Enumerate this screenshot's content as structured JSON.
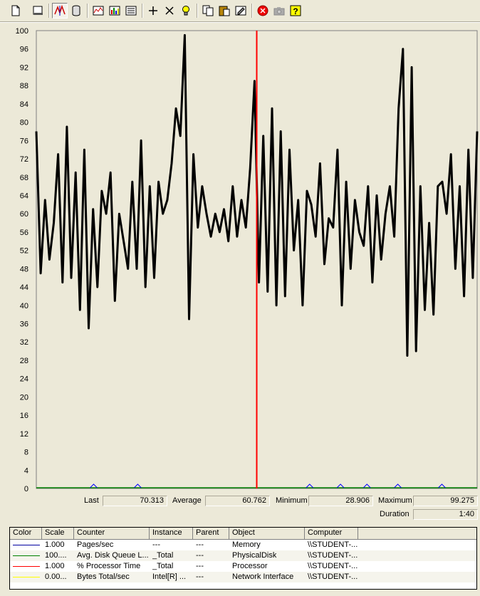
{
  "toolbar": {
    "buttons": [
      {
        "name": "new-counter-set-button",
        "icon": "new-document-icon"
      },
      {
        "name": "clear-display-button",
        "icon": "clear-display-icon"
      },
      {
        "name": "view-current-activity-button",
        "icon": "current-activity-icon"
      },
      {
        "name": "view-log-data-button",
        "icon": "log-data-icon"
      },
      {
        "name": "view-graph-button",
        "icon": "graph-icon"
      },
      {
        "name": "view-histogram-button",
        "icon": "histogram-icon"
      },
      {
        "name": "view-report-button",
        "icon": "report-icon"
      },
      {
        "name": "add-counter-button",
        "icon": "plus-icon"
      },
      {
        "name": "delete-counter-button",
        "icon": "x-icon"
      },
      {
        "name": "highlight-button",
        "icon": "lightbulb-icon"
      },
      {
        "name": "copy-properties-button",
        "icon": "copy-icon"
      },
      {
        "name": "paste-counter-list-button",
        "icon": "paste-icon"
      },
      {
        "name": "properties-button",
        "icon": "properties-icon"
      },
      {
        "name": "freeze-display-button",
        "icon": "stop-icon"
      },
      {
        "name": "update-data-button",
        "icon": "camera-icon"
      },
      {
        "name": "help-button",
        "icon": "help-icon"
      }
    ]
  },
  "chart_data": {
    "type": "line",
    "ylim": [
      0,
      100
    ],
    "yticks": [
      "0",
      "4",
      "8",
      "12",
      "16",
      "20",
      "24",
      "28",
      "32",
      "36",
      "40",
      "44",
      "48",
      "52",
      "56",
      "60",
      "64",
      "68",
      "72",
      "76",
      "80",
      "84",
      "88",
      "92",
      "96",
      "100"
    ],
    "time_bar_position": 0.5,
    "series": [
      {
        "name": "% Processor Time",
        "color": "#000000",
        "values": [
          78,
          47,
          63,
          50,
          58,
          73,
          45,
          79,
          46,
          69,
          39,
          74,
          35,
          61,
          44,
          65,
          60,
          69,
          41,
          60,
          54,
          48,
          67,
          48,
          76,
          44,
          66,
          46,
          67,
          60,
          63,
          71,
          83,
          77,
          99,
          37,
          73,
          57,
          66,
          60,
          55,
          60,
          56,
          61,
          54,
          66,
          55,
          63,
          57,
          70,
          89,
          45,
          77,
          43,
          83,
          40,
          78,
          42,
          74,
          52,
          63,
          40,
          65,
          62,
          55,
          71,
          49,
          59,
          57,
          74,
          40,
          67,
          48,
          63,
          56,
          53,
          66,
          45,
          64,
          50,
          60,
          66,
          55,
          83,
          96,
          29,
          92,
          30,
          66,
          39,
          58,
          38,
          66,
          67,
          60,
          73,
          48,
          66,
          42,
          74,
          46,
          78
        ]
      },
      {
        "name": "Avg. Disk Queue Length",
        "color": "#008000",
        "flat": true
      },
      {
        "name": "Pages/sec",
        "color": "#0000ff",
        "spikes": [
          0.13,
          0.23,
          0.62,
          0.69,
          0.75,
          0.82,
          0.92
        ]
      }
    ]
  },
  "stats": {
    "last_label": "Last",
    "last_value": "70.313",
    "average_label": "Average",
    "average_value": "60.762",
    "minimum_label": "Minimum",
    "minimum_value": "28.906",
    "maximum_label": "Maximum",
    "maximum_value": "99.275",
    "duration_label": "Duration",
    "duration_value": "1:40"
  },
  "table": {
    "headers": [
      "Color",
      "Scale",
      "Counter",
      "Instance",
      "Parent",
      "Object",
      "Computer"
    ],
    "rows": [
      {
        "color": "#0000a0",
        "scale": "1.000",
        "counter": "Pages/sec",
        "instance": "---",
        "parent": "---",
        "object": "Memory",
        "computer": "\\\\STUDENT-..."
      },
      {
        "color": "#008000",
        "scale": "100....",
        "counter": "Avg. Disk Queue L...",
        "instance": "_Total",
        "parent": "---",
        "object": "PhysicalDisk",
        "computer": "\\\\STUDENT-..."
      },
      {
        "color": "#ff0000",
        "scale": "1.000",
        "counter": "% Processor Time",
        "instance": "_Total",
        "parent": "---",
        "object": "Processor",
        "computer": "\\\\STUDENT-..."
      },
      {
        "color": "#ffff00",
        "scale": "0.00...",
        "counter": "Bytes Total/sec",
        "instance": "Intel[R] ...",
        "parent": "---",
        "object": "Network Interface",
        "computer": "\\\\STUDENT-..."
      }
    ]
  },
  "colors": {
    "background": "#ece9d8",
    "plot_background": "#ece9d8",
    "time_bar": "#ff0000",
    "series_line": "#000000"
  }
}
